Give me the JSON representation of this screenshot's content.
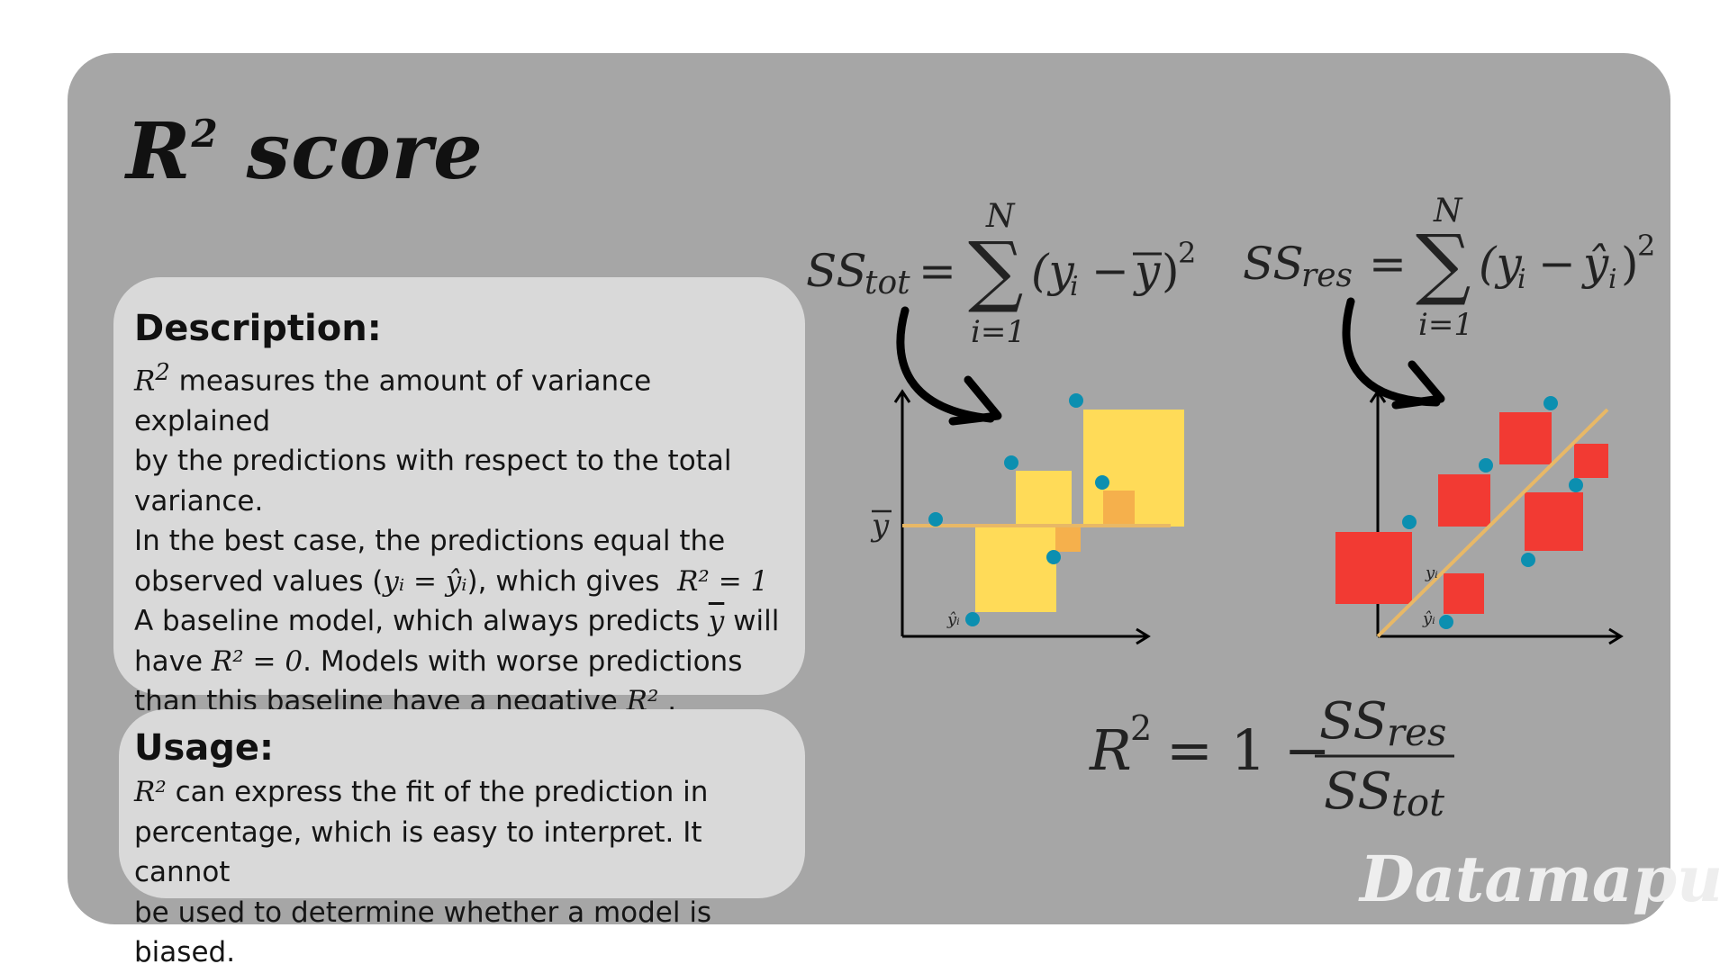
{
  "title": {
    "main": "R",
    "superscript": "2",
    "suffix": " score"
  },
  "description": {
    "heading": "Description:",
    "lines": [
      [
        "R",
        "2",
        " measures the amount of variance explained"
      ],
      "by the predictions with respect to the total",
      "variance.",
      "In the best case, the predictions equal the"
    ],
    "obs_prefix": "observed values (",
    "obs_math": "yᵢ = ŷᵢ",
    "obs_suffix": "), which gives",
    "obs_math2": "R² = 1",
    "baseline_prefix": "A baseline model, which always predicts",
    "baseline_math": "y",
    "baseline_suffix": " will",
    "have_prefix": "have",
    "have_math": "R² = 0",
    "have_suffix": ". Models with worse predictions",
    "neg_prefix": "than this baseline have a negative",
    "neg_math": "R²",
    "neg_suffix": "."
  },
  "usage": {
    "heading": "Usage:",
    "math": "R²",
    "line1": " can express the fit of the prediction in",
    "line2": "percentage, which is easy to interpret. It cannot",
    "line3": "be used to determine whether a model is biased."
  },
  "formulas": {
    "ss_tot": "SS_tot = ∑_{i=1}^{N} (y_i − ȳ)²",
    "ss_res": "SS_res = ∑_{i=1}^{N} (y_i − ŷ_i)²",
    "r2": "R² = 1 − SS_res / SS_tot"
  },
  "diagram_labels": {
    "ybar": "y",
    "yhat_left": "ŷᵢ",
    "y_right": "yᵢ",
    "yhat_right": "ŷᵢ"
  },
  "colors": {
    "card": "#a6a6a6",
    "panel": "#d9d9d9",
    "yellow_square": "#ffdb58",
    "orange_square": "#f5b04c",
    "red_square": "#f23a33",
    "point": "#0c8fb0",
    "line": "#e8b866"
  },
  "watermark": "Datamapu"
}
